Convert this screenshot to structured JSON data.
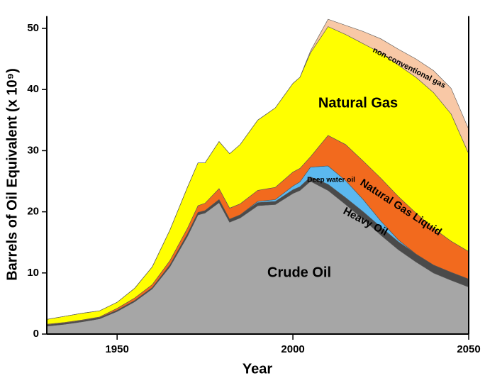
{
  "chart_data": {
    "type": "stacked_area",
    "x_label": "Year",
    "y_label": "Barrels of Oil Equivalent (x 10⁹)",
    "xlim": [
      1930,
      2050
    ],
    "ylim": [
      0,
      52
    ],
    "xticks": [
      1950,
      2000,
      2050
    ],
    "yticks": [
      0,
      10,
      20,
      30,
      40,
      50
    ],
    "x": [
      1930,
      1935,
      1940,
      1945,
      1950,
      1955,
      1960,
      1965,
      1970,
      1973,
      1975,
      1979,
      1982,
      1985,
      1990,
      1995,
      2000,
      2002,
      2005,
      2010,
      2015,
      2020,
      2025,
      2030,
      2035,
      2040,
      2045,
      2050
    ],
    "series": [
      {
        "name": "Crude Oil",
        "color": "#a6a6a6",
        "values": [
          1.3,
          1.6,
          2.0,
          2.5,
          3.7,
          5.3,
          7.4,
          11,
          16,
          19.5,
          19.8,
          21.5,
          18.3,
          19,
          21,
          21.2,
          23,
          23.5,
          25,
          23.5,
          21.2,
          18.8,
          16.2,
          13.8,
          11.8,
          10,
          8.8,
          7.7
        ]
      },
      {
        "name": "Heavy Oil",
        "color": "#4a4a4a",
        "values": [
          0.2,
          0.2,
          0.2,
          0.2,
          0.2,
          0.2,
          0.2,
          0.3,
          0.4,
          0.4,
          0.4,
          0.5,
          0.5,
          0.5,
          0.5,
          0.5,
          0.6,
          0.6,
          0.7,
          1.0,
          1.1,
          1.2,
          1.3,
          1.3,
          1.3,
          1.3,
          1.3,
          1.3
        ]
      },
      {
        "name": "Deep water oil",
        "color": "#5bb8ef",
        "values": [
          0,
          0,
          0,
          0,
          0,
          0,
          0,
          0,
          0,
          0,
          0,
          0,
          0,
          0,
          0.2,
          0.3,
          0.6,
          0.8,
          1.6,
          3.0,
          2.8,
          2.0,
          1.0,
          0.3,
          0,
          0,
          0,
          0
        ]
      },
      {
        "name": "Natural Gas Liquid",
        "color": "#f26a1e",
        "values": [
          0.1,
          0.1,
          0.1,
          0.1,
          0.3,
          0.4,
          0.5,
          0.7,
          0.9,
          1.1,
          1.2,
          1.8,
          1.8,
          1.8,
          1.8,
          2,
          2.3,
          2.2,
          1.7,
          5,
          5.9,
          6.3,
          7,
          7.1,
          6.7,
          6,
          5.1,
          4.5
        ]
      },
      {
        "name": "Natural Gas",
        "color": "#ffff00",
        "values": [
          0.8,
          1.0,
          1.1,
          1.0,
          1.0,
          1.6,
          2.9,
          5.0,
          6.7,
          7.0,
          6.6,
          7.7,
          8.9,
          9.7,
          11.5,
          13,
          14.5,
          14.9,
          17,
          17.8,
          18,
          19.2,
          20.5,
          21.5,
          22.2,
          22.2,
          20.8,
          16
        ]
      },
      {
        "name": "non-conventional gas",
        "color": "#f8c8a6",
        "values": [
          0,
          0,
          0,
          0,
          0,
          0,
          0,
          0,
          0,
          0,
          0,
          0,
          0,
          0,
          0,
          0,
          0,
          0,
          0.3,
          1.2,
          1.5,
          2,
          2.3,
          2.6,
          3,
          3.6,
          4.2,
          4
        ]
      }
    ]
  }
}
